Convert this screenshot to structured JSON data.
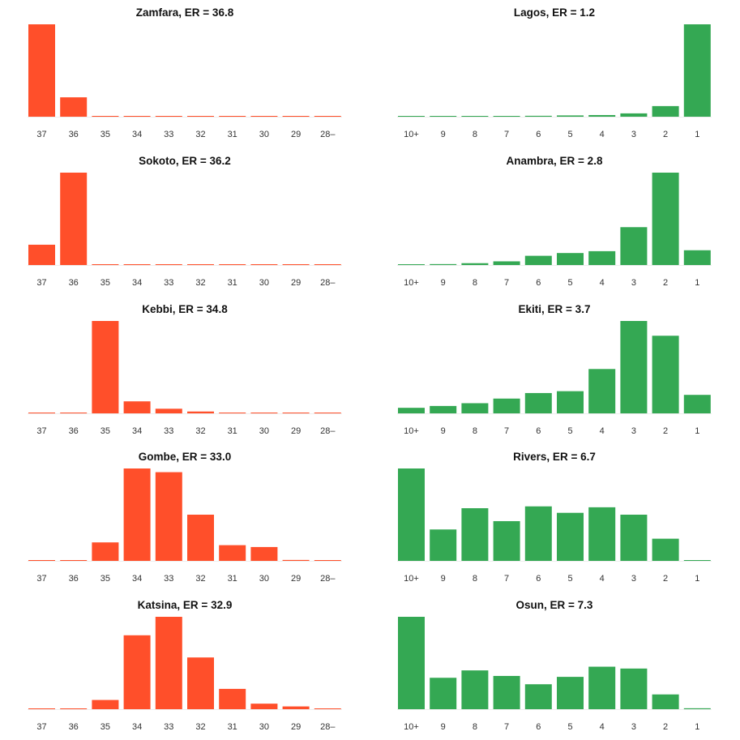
{
  "chart_data": [
    {
      "type": "bar",
      "title": "Zamfara, ER = 36.8",
      "categories": [
        "37",
        "36",
        "35",
        "34",
        "33",
        "32",
        "31",
        "30",
        "29",
        "28–"
      ],
      "values": [
        1.0,
        0.21,
        0.005,
        0.005,
        0.005,
        0.005,
        0.005,
        0.005,
        0.005,
        0.005
      ],
      "color": "#ff4f2a",
      "ylim": [
        0,
        1
      ]
    },
    {
      "type": "bar",
      "title": "Lagos, ER = 1.2",
      "categories": [
        "10+",
        "9",
        "8",
        "7",
        "6",
        "5",
        "4",
        "3",
        "2",
        "1"
      ],
      "values": [
        0.003,
        0.004,
        0.005,
        0.007,
        0.01,
        0.014,
        0.018,
        0.036,
        0.115,
        1.0
      ],
      "color": "#34a853",
      "ylim": [
        0,
        1
      ]
    },
    {
      "type": "bar",
      "title": "Sokoto, ER = 36.2",
      "categories": [
        "37",
        "36",
        "35",
        "34",
        "33",
        "32",
        "31",
        "30",
        "29",
        "28–"
      ],
      "values": [
        0.22,
        1.0,
        0.005,
        0.005,
        0.005,
        0.005,
        0.005,
        0.005,
        0.005,
        0.005
      ],
      "color": "#ff4f2a",
      "ylim": [
        0,
        1
      ]
    },
    {
      "type": "bar",
      "title": "Anambra, ER = 2.8",
      "categories": [
        "10+",
        "9",
        "8",
        "7",
        "6",
        "5",
        "4",
        "3",
        "2",
        "1"
      ],
      "values": [
        0.005,
        0.01,
        0.02,
        0.04,
        0.1,
        0.13,
        0.15,
        0.41,
        1.0,
        0.16
      ],
      "color": "#34a853",
      "ylim": [
        0,
        1
      ]
    },
    {
      "type": "bar",
      "title": "Kebbi, ER = 34.8",
      "categories": [
        "37",
        "36",
        "35",
        "34",
        "33",
        "32",
        "31",
        "30",
        "29",
        "28–"
      ],
      "values": [
        0.005,
        0.005,
        1.0,
        0.13,
        0.05,
        0.02,
        0.005,
        0.005,
        0.005,
        0.005
      ],
      "color": "#ff4f2a",
      "ylim": [
        0,
        1
      ]
    },
    {
      "type": "bar",
      "title": "Ekiti, ER = 3.7",
      "categories": [
        "10+",
        "9",
        "8",
        "7",
        "6",
        "5",
        "4",
        "3",
        "2",
        "1"
      ],
      "values": [
        0.06,
        0.08,
        0.11,
        0.16,
        0.22,
        0.24,
        0.48,
        1.0,
        0.84,
        0.2
      ],
      "color": "#34a853",
      "ylim": [
        0,
        1
      ]
    },
    {
      "type": "bar",
      "title": "Gombe, ER = 33.0",
      "categories": [
        "37",
        "36",
        "35",
        "34",
        "33",
        "32",
        "31",
        "30",
        "29",
        "28–"
      ],
      "values": [
        0.005,
        0.005,
        0.2,
        1.0,
        0.96,
        0.5,
        0.17,
        0.15,
        0.01,
        0.005
      ],
      "color": "#ff4f2a",
      "ylim": [
        0,
        1
      ]
    },
    {
      "type": "bar",
      "title": "Rivers, ER = 6.7",
      "categories": [
        "10+",
        "9",
        "8",
        "7",
        "6",
        "5",
        "4",
        "3",
        "2",
        "1"
      ],
      "values": [
        1.0,
        0.34,
        0.57,
        0.43,
        0.59,
        0.52,
        0.58,
        0.5,
        0.24,
        0.005
      ],
      "color": "#34a853",
      "ylim": [
        0,
        1
      ]
    },
    {
      "type": "bar",
      "title": "Katsina, ER = 32.9",
      "categories": [
        "37",
        "36",
        "35",
        "34",
        "33",
        "32",
        "31",
        "30",
        "29",
        "28–"
      ],
      "values": [
        0.005,
        0.005,
        0.1,
        0.8,
        1.0,
        0.56,
        0.22,
        0.06,
        0.03,
        0.005
      ],
      "color": "#ff4f2a",
      "ylim": [
        0,
        1
      ]
    },
    {
      "type": "bar",
      "title": "Osun, ER = 7.3",
      "categories": [
        "10+",
        "9",
        "8",
        "7",
        "6",
        "5",
        "4",
        "3",
        "2",
        "1"
      ],
      "values": [
        1.0,
        0.34,
        0.42,
        0.36,
        0.27,
        0.35,
        0.46,
        0.44,
        0.16,
        0.01
      ],
      "color": "#34a853",
      "ylim": [
        0,
        1
      ]
    }
  ]
}
